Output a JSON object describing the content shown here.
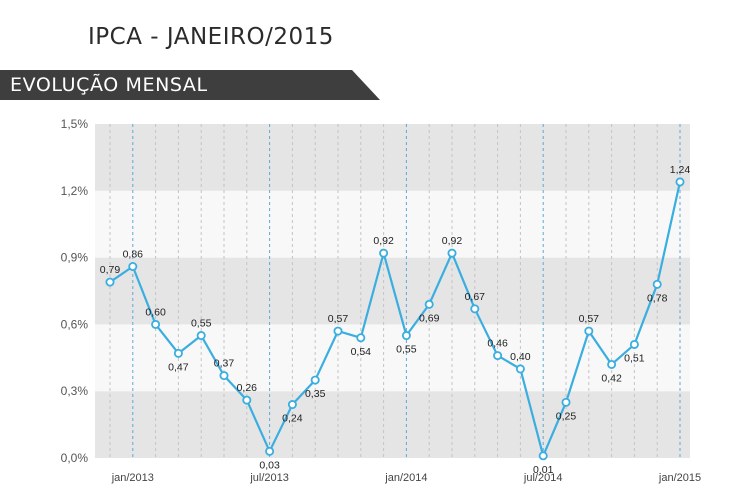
{
  "header": {
    "title": "IPCA - JANEIRO/2015"
  },
  "banner": {
    "label": "EVOLUÇÃO MENSAL"
  },
  "colors": {
    "line": "#3aaee0",
    "band": "#e5e5e5",
    "banner": "#3e3e3e"
  },
  "chart_data": {
    "type": "line",
    "title": "",
    "xlabel": "",
    "ylabel": "",
    "grid": true,
    "ylim": [
      0,
      1.5
    ],
    "yticks": [
      {
        "value": 0,
        "label": "0,0%"
      },
      {
        "value": 0.3,
        "label": "0,3%"
      },
      {
        "value": 0.6,
        "label": "0,6%"
      },
      {
        "value": 0.9,
        "label": "0,9%"
      },
      {
        "value": 1.2,
        "label": "1,2%"
      },
      {
        "value": 1.5,
        "label": "1,5%"
      }
    ],
    "xtick_labels": [
      {
        "index": 1,
        "label": "jan/2013"
      },
      {
        "index": 7,
        "label": "jul/2013"
      },
      {
        "index": 13,
        "label": "jan/2014"
      },
      {
        "index": 19,
        "label": "jul/2014"
      },
      {
        "index": 25,
        "label": "jan/2015"
      }
    ],
    "series": [
      {
        "values": [
          0.79,
          0.86,
          0.6,
          0.47,
          0.55,
          0.37,
          0.26,
          0.03,
          0.24,
          0.35,
          0.57,
          0.54,
          0.92,
          0.55,
          0.69,
          0.92,
          0.67,
          0.46,
          0.4,
          0.01,
          0.25,
          0.57,
          0.42,
          0.51,
          0.78,
          1.24
        ],
        "labels": [
          "0,79",
          "0,86",
          "0,60",
          "0,47",
          "0,55",
          "0,37",
          "0,26",
          "0,03",
          "0,24",
          "0,35",
          "0,57",
          "0,54",
          "0,92",
          "0,55",
          "0,69",
          "0,92",
          "0,67",
          "0,46",
          "0,40",
          "0,01",
          "0,25",
          "0,57",
          "0,42",
          "0,51",
          "0,78",
          "1,24"
        ]
      }
    ]
  }
}
